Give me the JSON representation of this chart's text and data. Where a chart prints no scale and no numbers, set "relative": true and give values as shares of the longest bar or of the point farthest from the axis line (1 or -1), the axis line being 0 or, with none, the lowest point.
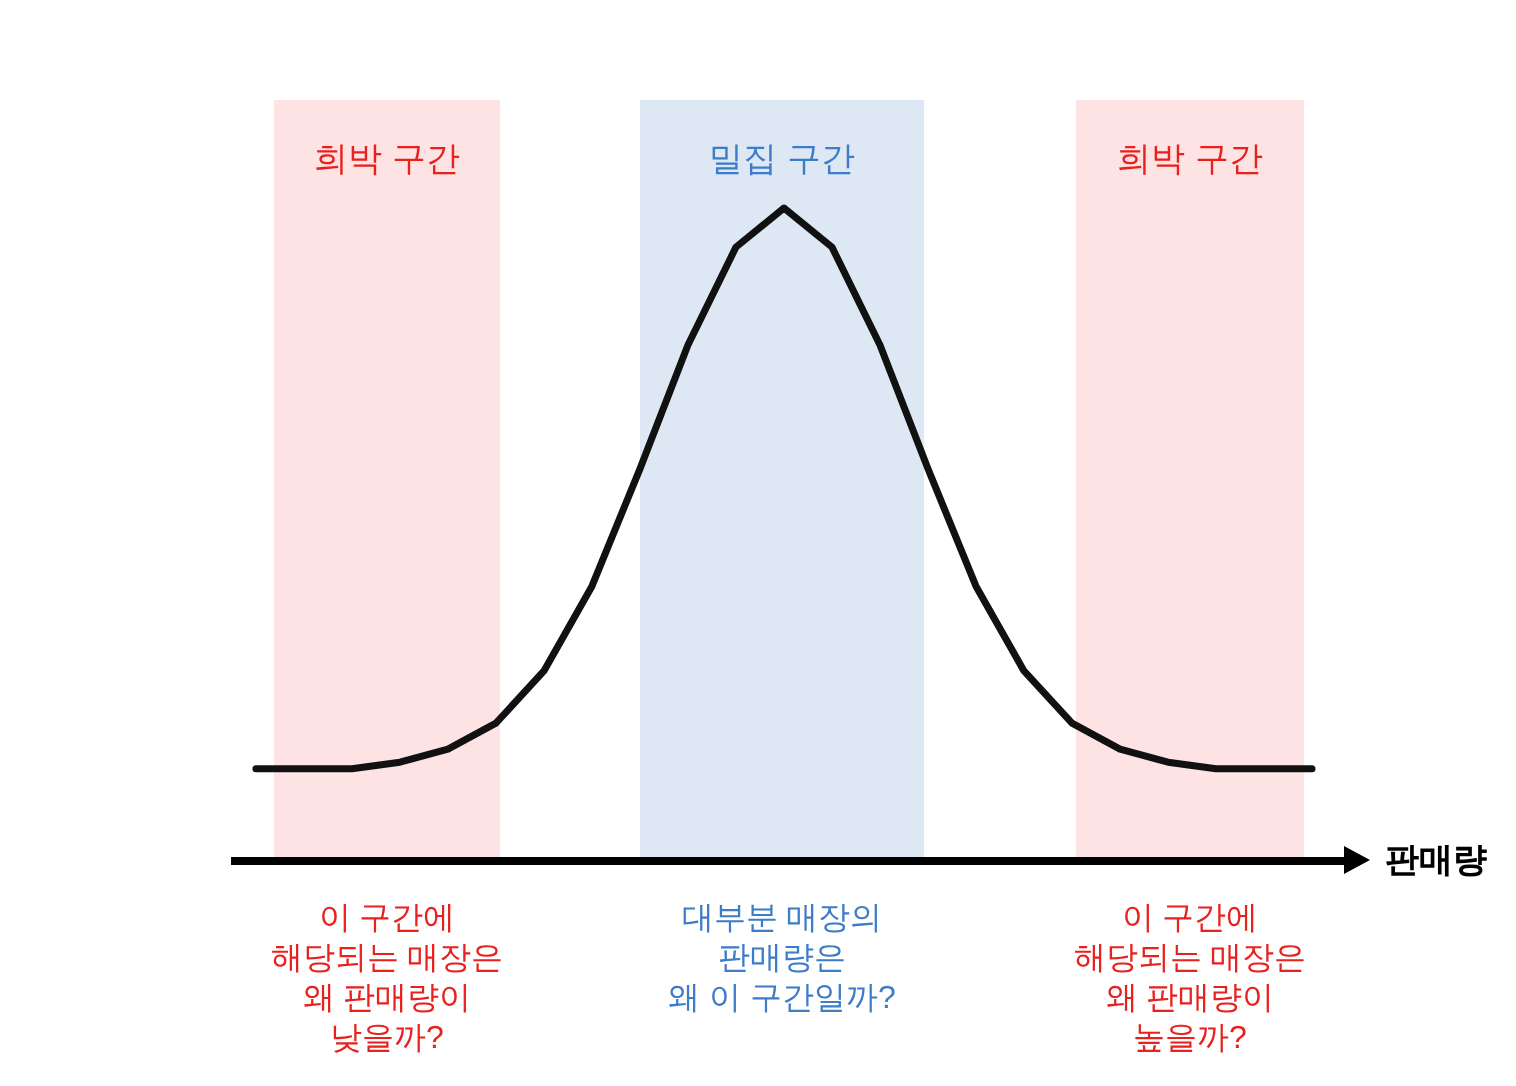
{
  "chart_data": {
    "type": "line",
    "relative": true,
    "xlabel": "판매량",
    "categories": [
      null,
      null,
      null,
      null,
      null,
      null,
      null,
      null,
      null,
      null,
      null,
      null,
      null,
      null,
      null,
      null,
      null,
      null,
      null,
      null,
      null,
      null,
      null
    ],
    "series": [
      {
        "color": "#111111",
        "values": [
          0.14,
          0.14,
          0.14,
          0.15,
          0.17,
          0.21,
          0.29,
          0.42,
          0.6,
          0.79,
          0.94,
          1,
          0.94,
          0.79,
          0.6,
          0.42,
          0.29,
          0.21,
          0.17,
          0.15,
          0.14,
          0.14,
          0.14
        ]
      }
    ],
    "annotations": [
      "희박 구간",
      "밀집 구간",
      "희박 구간",
      "이 구간에\n해당되는 매장은\n왜 판매량이\n낮을까?",
      "대부분 매장의\n판매량은\n왜 이 구간일까?",
      "이 구간에\n해당되는 매장은\n왜 판매량이\n높을까?"
    ]
  }
}
